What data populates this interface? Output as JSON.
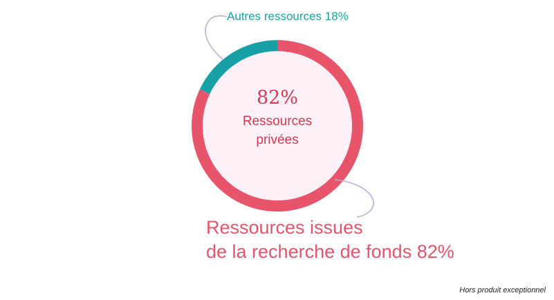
{
  "chart_data": {
    "type": "pie",
    "style": "donut",
    "title": "",
    "center_text": {
      "value": "82%",
      "label_line1": "Ressources",
      "label_line2": "privées"
    },
    "slices": [
      {
        "label": "Autres ressources 18%",
        "value": 18,
        "color": "#17a1a6"
      },
      {
        "label_line1": "Ressources issues",
        "label_line2": "de la recherche de fonds 82%",
        "value": 82,
        "color": "#e8556a"
      }
    ],
    "center_fill": "#fdf1f7",
    "leader_line_color": "#b7aed8"
  },
  "footnote": "Hors produit exceptionnel"
}
